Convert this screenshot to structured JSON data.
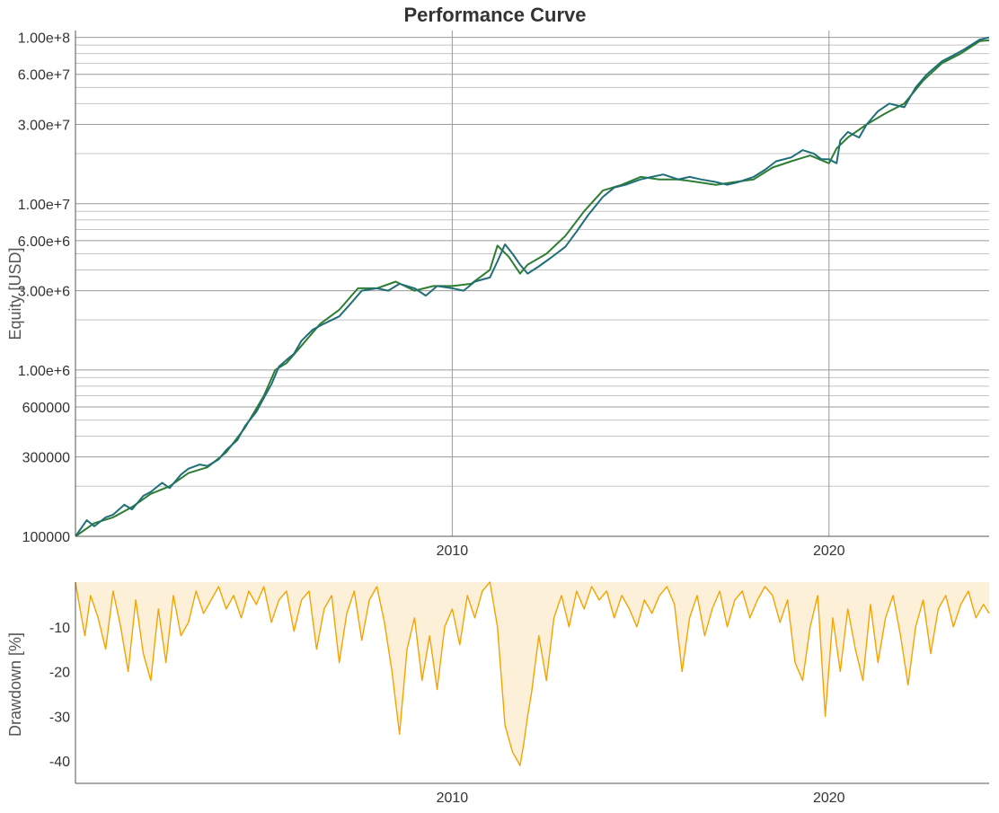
{
  "chart_data": [
    {
      "type": "line",
      "title": "Performance Curve",
      "ylabel": "Equity [USD]",
      "yscale": "log",
      "xlim": [
        2000.0,
        2024.25
      ],
      "ylim": [
        100000,
        110000000
      ],
      "y_ticks": [
        {
          "value": 100000,
          "label": "100000"
        },
        {
          "value": 300000,
          "label": "300000"
        },
        {
          "value": 600000,
          "label": "600000"
        },
        {
          "value": 1000000,
          "label": "1.00e+6"
        },
        {
          "value": 3000000,
          "label": "3.00e+6"
        },
        {
          "value": 6000000,
          "label": "6.00e+6"
        },
        {
          "value": 10000000,
          "label": "1.00e+7"
        },
        {
          "value": 30000000,
          "label": "3.00e+7"
        },
        {
          "value": 60000000,
          "label": "6.00e+7"
        },
        {
          "value": 100000000,
          "label": "1.00e+8"
        }
      ],
      "x_ticks": [
        {
          "value": 2010,
          "label": "2010"
        },
        {
          "value": 2020,
          "label": "2020"
        }
      ],
      "grid": true,
      "series": [
        {
          "color": "#2e7d32",
          "x": [
            2000.0,
            2000.5,
            2001.0,
            2001.5,
            2002.0,
            2002.5,
            2003.0,
            2003.5,
            2004.0,
            2004.5,
            2005.0,
            2005.3,
            2005.6,
            2006.0,
            2006.5,
            2007.0,
            2007.5,
            2008.0,
            2008.5,
            2009.0,
            2009.5,
            2010.0,
            2010.5,
            2011.0,
            2011.2,
            2011.5,
            2011.8,
            2012.0,
            2012.5,
            2013.0,
            2013.5,
            2014.0,
            2014.5,
            2015.0,
            2015.5,
            2016.0,
            2016.5,
            2017.0,
            2017.5,
            2018.0,
            2018.5,
            2019.0,
            2019.5,
            2020.0,
            2020.2,
            2020.5,
            2021.0,
            2021.5,
            2022.0,
            2022.5,
            2023.0,
            2023.5,
            2024.0,
            2024.25
          ],
          "y": [
            100000,
            120000,
            130000,
            150000,
            180000,
            200000,
            240000,
            260000,
            320000,
            450000,
            700000,
            1000000,
            1100000,
            1400000,
            1900000,
            2300000,
            3100000,
            3100000,
            3400000,
            3000000,
            3200000,
            3200000,
            3300000,
            4000000,
            5600000,
            4800000,
            3800000,
            4300000,
            5000000,
            6400000,
            9000000,
            12000000,
            13000000,
            14500000,
            14000000,
            14000000,
            13500000,
            13000000,
            13500000,
            14000000,
            16500000,
            18000000,
            19500000,
            17500000,
            21500000,
            25000000,
            30000000,
            35000000,
            40000000,
            55000000,
            70000000,
            80000000,
            95000000,
            96000000
          ]
        },
        {
          "color": "#1f6e78",
          "x": [
            2000.0,
            2000.3,
            2000.5,
            2000.8,
            2001.0,
            2001.3,
            2001.5,
            2001.8,
            2002.0,
            2002.3,
            2002.5,
            2002.8,
            2003.0,
            2003.3,
            2003.5,
            2003.8,
            2004.0,
            2004.3,
            2004.5,
            2004.8,
            2005.0,
            2005.2,
            2005.4,
            2005.6,
            2005.8,
            2006.0,
            2006.3,
            2006.6,
            2007.0,
            2007.3,
            2007.6,
            2008.0,
            2008.3,
            2008.6,
            2009.0,
            2009.3,
            2009.6,
            2010.0,
            2010.3,
            2010.6,
            2011.0,
            2011.2,
            2011.4,
            2011.6,
            2011.8,
            2012.0,
            2012.3,
            2012.6,
            2013.0,
            2013.3,
            2013.6,
            2014.0,
            2014.3,
            2014.6,
            2015.0,
            2015.3,
            2015.6,
            2016.0,
            2016.3,
            2016.6,
            2017.0,
            2017.3,
            2017.6,
            2018.0,
            2018.3,
            2018.6,
            2019.0,
            2019.3,
            2019.6,
            2019.8,
            2020.0,
            2020.2,
            2020.3,
            2020.5,
            2020.8,
            2021.0,
            2021.3,
            2021.6,
            2022.0,
            2022.3,
            2022.6,
            2023.0,
            2023.3,
            2023.6,
            2024.0,
            2024.25
          ],
          "y": [
            100000,
            125000,
            115000,
            130000,
            135000,
            155000,
            145000,
            175000,
            185000,
            210000,
            195000,
            235000,
            255000,
            270000,
            265000,
            290000,
            330000,
            380000,
            460000,
            560000,
            680000,
            820000,
            1050000,
            1150000,
            1250000,
            1500000,
            1750000,
            1900000,
            2100000,
            2500000,
            3000000,
            3100000,
            3000000,
            3300000,
            3100000,
            2800000,
            3200000,
            3100000,
            3000000,
            3400000,
            3600000,
            4500000,
            5700000,
            5000000,
            4300000,
            3800000,
            4200000,
            4700000,
            5500000,
            6800000,
            8500000,
            11000000,
            12500000,
            13000000,
            14000000,
            14500000,
            15000000,
            14000000,
            14500000,
            14000000,
            13500000,
            13000000,
            13500000,
            14500000,
            16000000,
            18000000,
            19000000,
            21000000,
            20000000,
            18500000,
            18500000,
            17500000,
            24000000,
            27000000,
            25000000,
            30000000,
            36000000,
            40000000,
            38000000,
            50000000,
            60000000,
            72000000,
            78000000,
            85000000,
            97000000,
            100000000
          ]
        }
      ]
    },
    {
      "type": "area",
      "ylabel": "Drawdown [%]",
      "xlim": [
        2000.0,
        2024.25
      ],
      "ylim": [
        -45,
        0
      ],
      "y_ticks": [
        {
          "value": -10,
          "label": "-10"
        },
        {
          "value": -20,
          "label": "-20"
        },
        {
          "value": -30,
          "label": "-30"
        },
        {
          "value": -40,
          "label": "-40"
        }
      ],
      "x_ticks": [
        {
          "value": 2010,
          "label": "2010"
        },
        {
          "value": 2020,
          "label": "2020"
        }
      ],
      "grid": false,
      "line_color": "#f5a300",
      "fill_color": "#fdf0d9",
      "x": [
        2000.0,
        2000.1,
        2000.25,
        2000.4,
        2000.6,
        2000.8,
        2001.0,
        2001.2,
        2001.4,
        2001.6,
        2001.8,
        2002.0,
        2002.2,
        2002.4,
        2002.6,
        2002.8,
        2003.0,
        2003.2,
        2003.4,
        2003.6,
        2003.8,
        2004.0,
        2004.2,
        2004.4,
        2004.6,
        2004.8,
        2005.0,
        2005.2,
        2005.4,
        2005.6,
        2005.8,
        2006.0,
        2006.2,
        2006.4,
        2006.6,
        2006.8,
        2007.0,
        2007.2,
        2007.4,
        2007.6,
        2007.8,
        2008.0,
        2008.2,
        2008.4,
        2008.6,
        2008.8,
        2009.0,
        2009.2,
        2009.4,
        2009.6,
        2009.8,
        2010.0,
        2010.2,
        2010.4,
        2010.6,
        2010.8,
        2011.0,
        2011.2,
        2011.4,
        2011.6,
        2011.8,
        2011.9,
        2012.0,
        2012.1,
        2012.3,
        2012.5,
        2012.7,
        2012.9,
        2013.1,
        2013.3,
        2013.5,
        2013.7,
        2013.9,
        2014.1,
        2014.3,
        2014.5,
        2014.7,
        2014.9,
        2015.1,
        2015.3,
        2015.5,
        2015.7,
        2015.9,
        2016.1,
        2016.3,
        2016.5,
        2016.7,
        2016.9,
        2017.1,
        2017.3,
        2017.5,
        2017.7,
        2017.9,
        2018.1,
        2018.3,
        2018.5,
        2018.7,
        2018.9,
        2019.1,
        2019.3,
        2019.5,
        2019.7,
        2019.9,
        2020.1,
        2020.3,
        2020.5,
        2020.7,
        2020.9,
        2021.1,
        2021.3,
        2021.5,
        2021.7,
        2021.9,
        2022.1,
        2022.3,
        2022.5,
        2022.7,
        2022.9,
        2023.1,
        2023.3,
        2023.5,
        2023.7,
        2023.9,
        2024.1,
        2024.25
      ],
      "y": [
        0,
        -5,
        -12,
        -3,
        -8,
        -15,
        -2,
        -10,
        -20,
        -4,
        -16,
        -22,
        -6,
        -18,
        -3,
        -12,
        -9,
        -2,
        -7,
        -4,
        -1,
        -6,
        -3,
        -8,
        -2,
        -5,
        -1,
        -9,
        -4,
        -2,
        -11,
        -4,
        -2,
        -15,
        -6,
        -3,
        -18,
        -7,
        -2,
        -13,
        -4,
        -1,
        -9,
        -20,
        -34,
        -15,
        -8,
        -22,
        -12,
        -24,
        -10,
        -6,
        -14,
        -3,
        -8,
        -2,
        0,
        -10,
        -32,
        -38,
        -41,
        -36,
        -30,
        -25,
        -12,
        -22,
        -8,
        -3,
        -10,
        -2,
        -6,
        -1,
        -4,
        -2,
        -8,
        -3,
        -6,
        -10,
        -4,
        -7,
        -3,
        -1,
        -5,
        -20,
        -8,
        -3,
        -12,
        -6,
        -2,
        -10,
        -4,
        -2,
        -8,
        -4,
        -1,
        -3,
        -9,
        -4,
        -18,
        -22,
        -10,
        -3,
        -30,
        -8,
        -20,
        -6,
        -15,
        -22,
        -5,
        -18,
        -8,
        -3,
        -12,
        -23,
        -10,
        -4,
        -16,
        -6,
        -3,
        -10,
        -5,
        -2,
        -8,
        -5,
        -7
      ]
    }
  ]
}
